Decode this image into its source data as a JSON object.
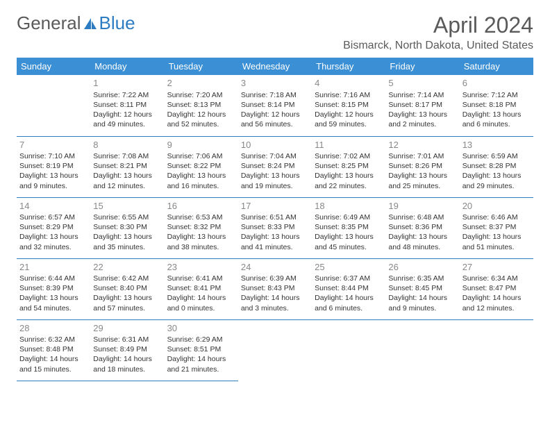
{
  "logo": {
    "text1": "General",
    "text2": "Blue"
  },
  "title": "April 2024",
  "location": "Bismarck, North Dakota, United States",
  "colors": {
    "header_bg": "#3b8fd4",
    "header_text": "#ffffff",
    "border": "#2d7cc1",
    "daynum": "#888888",
    "body_text": "#333333",
    "title_text": "#5a5a5a"
  },
  "weekdays": [
    "Sunday",
    "Monday",
    "Tuesday",
    "Wednesday",
    "Thursday",
    "Friday",
    "Saturday"
  ],
  "start_offset": 1,
  "days": [
    {
      "n": 1,
      "sr": "7:22 AM",
      "ss": "8:11 PM",
      "dl": "12 hours and 49 minutes."
    },
    {
      "n": 2,
      "sr": "7:20 AM",
      "ss": "8:13 PM",
      "dl": "12 hours and 52 minutes."
    },
    {
      "n": 3,
      "sr": "7:18 AM",
      "ss": "8:14 PM",
      "dl": "12 hours and 56 minutes."
    },
    {
      "n": 4,
      "sr": "7:16 AM",
      "ss": "8:15 PM",
      "dl": "12 hours and 59 minutes."
    },
    {
      "n": 5,
      "sr": "7:14 AM",
      "ss": "8:17 PM",
      "dl": "13 hours and 2 minutes."
    },
    {
      "n": 6,
      "sr": "7:12 AM",
      "ss": "8:18 PM",
      "dl": "13 hours and 6 minutes."
    },
    {
      "n": 7,
      "sr": "7:10 AM",
      "ss": "8:19 PM",
      "dl": "13 hours and 9 minutes."
    },
    {
      "n": 8,
      "sr": "7:08 AM",
      "ss": "8:21 PM",
      "dl": "13 hours and 12 minutes."
    },
    {
      "n": 9,
      "sr": "7:06 AM",
      "ss": "8:22 PM",
      "dl": "13 hours and 16 minutes."
    },
    {
      "n": 10,
      "sr": "7:04 AM",
      "ss": "8:24 PM",
      "dl": "13 hours and 19 minutes."
    },
    {
      "n": 11,
      "sr": "7:02 AM",
      "ss": "8:25 PM",
      "dl": "13 hours and 22 minutes."
    },
    {
      "n": 12,
      "sr": "7:01 AM",
      "ss": "8:26 PM",
      "dl": "13 hours and 25 minutes."
    },
    {
      "n": 13,
      "sr": "6:59 AM",
      "ss": "8:28 PM",
      "dl": "13 hours and 29 minutes."
    },
    {
      "n": 14,
      "sr": "6:57 AM",
      "ss": "8:29 PM",
      "dl": "13 hours and 32 minutes."
    },
    {
      "n": 15,
      "sr": "6:55 AM",
      "ss": "8:30 PM",
      "dl": "13 hours and 35 minutes."
    },
    {
      "n": 16,
      "sr": "6:53 AM",
      "ss": "8:32 PM",
      "dl": "13 hours and 38 minutes."
    },
    {
      "n": 17,
      "sr": "6:51 AM",
      "ss": "8:33 PM",
      "dl": "13 hours and 41 minutes."
    },
    {
      "n": 18,
      "sr": "6:49 AM",
      "ss": "8:35 PM",
      "dl": "13 hours and 45 minutes."
    },
    {
      "n": 19,
      "sr": "6:48 AM",
      "ss": "8:36 PM",
      "dl": "13 hours and 48 minutes."
    },
    {
      "n": 20,
      "sr": "6:46 AM",
      "ss": "8:37 PM",
      "dl": "13 hours and 51 minutes."
    },
    {
      "n": 21,
      "sr": "6:44 AM",
      "ss": "8:39 PM",
      "dl": "13 hours and 54 minutes."
    },
    {
      "n": 22,
      "sr": "6:42 AM",
      "ss": "8:40 PM",
      "dl": "13 hours and 57 minutes."
    },
    {
      "n": 23,
      "sr": "6:41 AM",
      "ss": "8:41 PM",
      "dl": "14 hours and 0 minutes."
    },
    {
      "n": 24,
      "sr": "6:39 AM",
      "ss": "8:43 PM",
      "dl": "14 hours and 3 minutes."
    },
    {
      "n": 25,
      "sr": "6:37 AM",
      "ss": "8:44 PM",
      "dl": "14 hours and 6 minutes."
    },
    {
      "n": 26,
      "sr": "6:35 AM",
      "ss": "8:45 PM",
      "dl": "14 hours and 9 minutes."
    },
    {
      "n": 27,
      "sr": "6:34 AM",
      "ss": "8:47 PM",
      "dl": "14 hours and 12 minutes."
    },
    {
      "n": 28,
      "sr": "6:32 AM",
      "ss": "8:48 PM",
      "dl": "14 hours and 15 minutes."
    },
    {
      "n": 29,
      "sr": "6:31 AM",
      "ss": "8:49 PM",
      "dl": "14 hours and 18 minutes."
    },
    {
      "n": 30,
      "sr": "6:29 AM",
      "ss": "8:51 PM",
      "dl": "14 hours and 21 minutes."
    }
  ],
  "labels": {
    "sunrise": "Sunrise:",
    "sunset": "Sunset:",
    "daylight": "Daylight:"
  }
}
